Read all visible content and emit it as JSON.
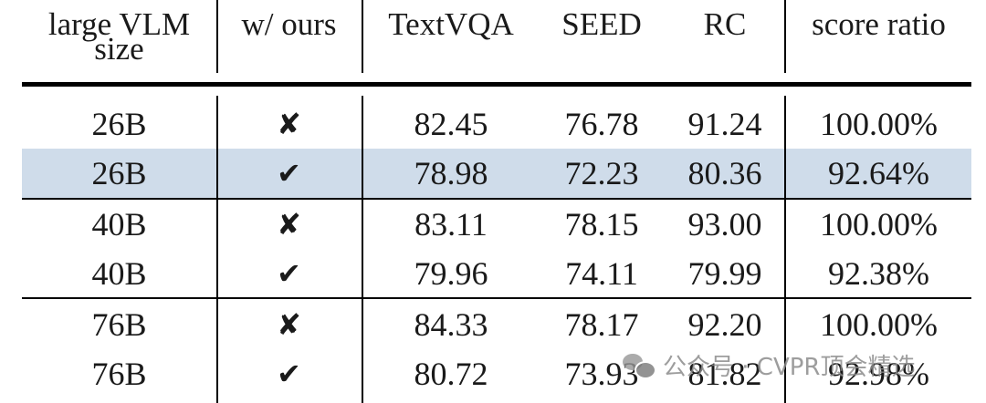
{
  "chart_data": {
    "type": "table",
    "columns": [
      "large VLM size",
      "w/ ours",
      "TextVQA",
      "SEED",
      "RC",
      "score ratio"
    ],
    "header": {
      "size_line1": "large VLM",
      "size_line2": "size",
      "ours": "w/ ours",
      "textvqa": "TextVQA",
      "seed": "SEED",
      "rc": "RC",
      "ratio": "score ratio"
    },
    "rows": [
      {
        "size": "26B",
        "ours": "✘",
        "textvqa": "82.45",
        "seed": "76.78",
        "rc": "91.24",
        "ratio": "100.00%",
        "highlight": false
      },
      {
        "size": "26B",
        "ours": "✔",
        "textvqa": "78.98",
        "seed": "72.23",
        "rc": "80.36",
        "ratio": "92.64%",
        "highlight": true
      },
      {
        "size": "40B",
        "ours": "✘",
        "textvqa": "83.11",
        "seed": "78.15",
        "rc": "93.00",
        "ratio": "100.00%",
        "highlight": false
      },
      {
        "size": "40B",
        "ours": "✔",
        "textvqa": "79.96",
        "seed": "74.11",
        "rc": "79.99",
        "ratio": "92.38%",
        "highlight": false
      },
      {
        "size": "76B",
        "ours": "✘",
        "textvqa": "84.33",
        "seed": "78.17",
        "rc": "92.20",
        "ratio": "100.00%",
        "highlight": false
      },
      {
        "size": "76B",
        "ours": "✔",
        "textvqa": "80.72",
        "seed": "73.93",
        "rc": "81.82",
        "ratio": "92.98%",
        "highlight": false
      }
    ],
    "highlight_color": "#cfdcea"
  },
  "watermark": {
    "text": "公众号 · CVPR顶会精选",
    "icon": "wechat-icon"
  }
}
